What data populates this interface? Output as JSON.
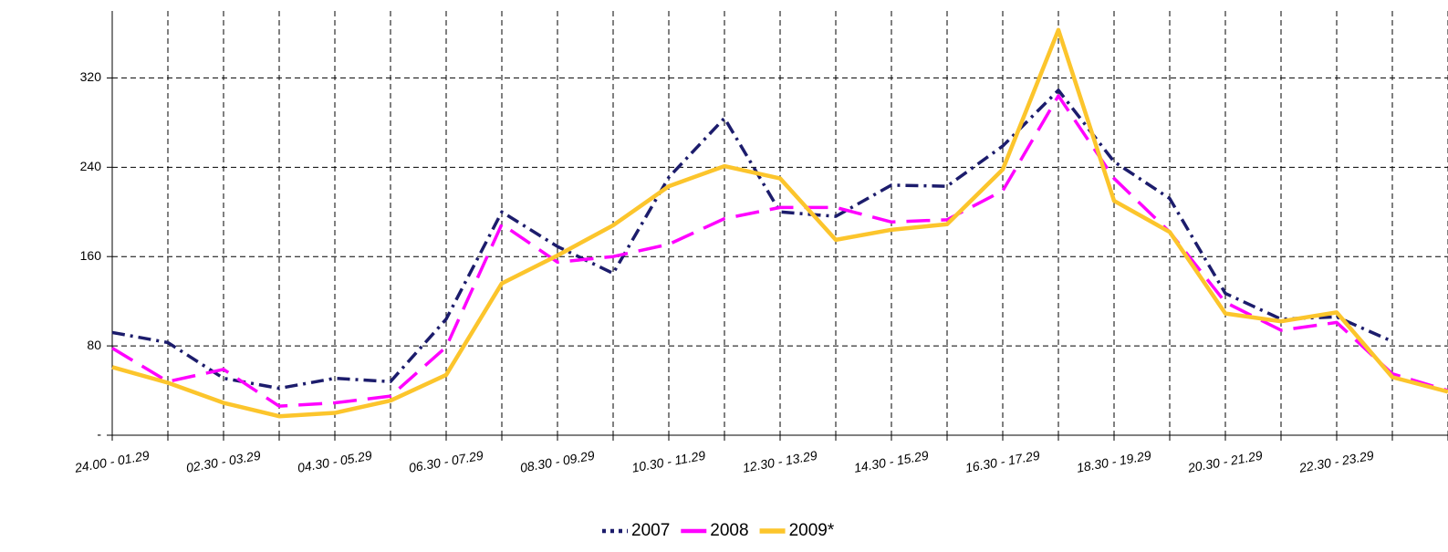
{
  "chart_data": {
    "type": "line",
    "categories": [
      "24.00 - 01.29",
      null,
      "02.30 - 03.29",
      null,
      "04.30 - 05.29",
      null,
      "06.30 - 07.29",
      null,
      "08.30 - 09.29",
      null,
      "10.30 - 11.29",
      null,
      "12.30 - 13.29",
      null,
      "14.30 - 15.29",
      null,
      "16.30 - 17.29",
      null,
      "18.30 - 19.29",
      null,
      "20.30 - 21.29",
      null,
      "22.30 - 23.29",
      null,
      null
    ],
    "series": [
      {
        "name": "2007",
        "color": "#1c1c6c",
        "style": "dash-dot",
        "values": [
          92,
          83,
          51,
          42,
          51,
          48,
          104,
          200,
          169,
          145,
          231,
          284,
          200,
          196,
          224,
          223,
          259,
          309,
          245,
          212,
          127,
          104,
          106,
          84,
          null
        ]
      },
      {
        "name": "2008",
        "color": "#ff00ff",
        "style": "dash",
        "values": [
          78,
          48,
          59,
          26,
          29,
          35,
          79,
          189,
          155,
          160,
          171,
          194,
          204,
          204,
          191,
          193,
          219,
          304,
          230,
          182,
          119,
          94,
          101,
          55,
          40
        ]
      },
      {
        "name": "2009*",
        "color": "#fcc52c",
        "style": "solid",
        "values": [
          61,
          47,
          29,
          17,
          20,
          31,
          54,
          136,
          161,
          188,
          223,
          241,
          230,
          175,
          184,
          189,
          238,
          363,
          210,
          182,
          109,
          102,
          110,
          52,
          39
        ]
      }
    ],
    "ylim": [
      0,
      380
    ],
    "yticks": [
      {
        "value": 0,
        "label": "-"
      },
      80,
      160,
      240,
      320
    ],
    "grid": true,
    "legend": "bottom"
  }
}
